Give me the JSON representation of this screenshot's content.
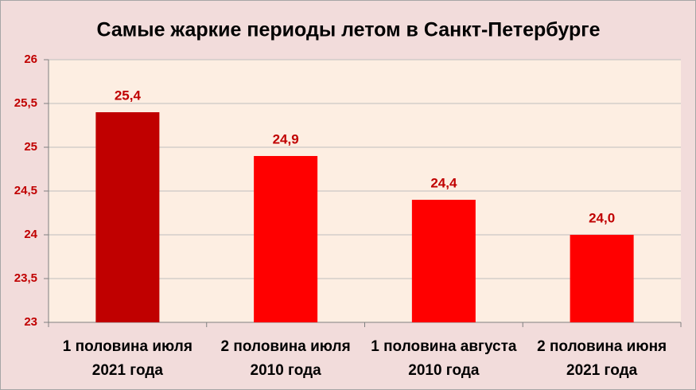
{
  "chart_data": {
    "type": "bar",
    "title": "Самые жаркие периоды летом в Санкт-Петербурге",
    "categories": [
      "1 половина июля 2021 года",
      "2 половина июля 2010 года",
      "1 половина августа 2010 года",
      "2 половина июня 2021 года"
    ],
    "values": [
      25.4,
      24.9,
      24.4,
      24.0
    ],
    "value_labels": [
      "25,4",
      "24,9",
      "24,4",
      "24,0"
    ],
    "colors": [
      "#c00000",
      "#ff0000",
      "#ff0000",
      "#ff0000"
    ],
    "ylim": [
      23,
      26
    ],
    "yticks": [
      23,
      {
        "value": 23.5,
        "label": "23,5"
      },
      24,
      {
        "value": 24.5,
        "label": "24,5"
      },
      25,
      {
        "value": 25.5,
        "label": "25,5"
      },
      26
    ],
    "grid": true
  }
}
